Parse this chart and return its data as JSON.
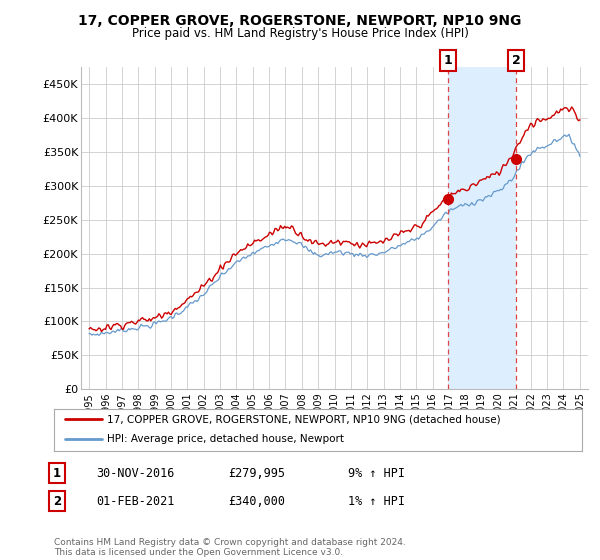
{
  "title": "17, COPPER GROVE, ROGERSTONE, NEWPORT, NP10 9NG",
  "subtitle": "Price paid vs. HM Land Registry's House Price Index (HPI)",
  "ylabel_ticks": [
    "£0",
    "£50K",
    "£100K",
    "£150K",
    "£200K",
    "£250K",
    "£300K",
    "£350K",
    "£400K",
    "£450K"
  ],
  "ytick_vals": [
    0,
    50000,
    100000,
    150000,
    200000,
    250000,
    300000,
    350000,
    400000,
    450000
  ],
  "ylim": [
    0,
    475000
  ],
  "xlim_start": 1994.5,
  "xlim_end": 2025.5,
  "sale1": {
    "date_num": 2016.92,
    "price": 279995,
    "label": "1"
  },
  "sale2": {
    "date_num": 2021.09,
    "price": 340000,
    "label": "2"
  },
  "red_line_color": "#cc0000",
  "blue_line_color": "#6699cc",
  "shade_color": "#ddeeff",
  "grid_color": "#cccccc",
  "background_color": "#ffffff",
  "legend_entry1": "17, COPPER GROVE, ROGERSTONE, NEWPORT, NP10 9NG (detached house)",
  "legend_entry2": "HPI: Average price, detached house, Newport",
  "sale1_date": "30-NOV-2016",
  "sale1_price": "£279,995",
  "sale1_hpi": "9% ↑ HPI",
  "sale2_date": "01-FEB-2021",
  "sale2_price": "£340,000",
  "sale2_hpi": "1% ↑ HPI",
  "footer": "Contains HM Land Registry data © Crown copyright and database right 2024.\nThis data is licensed under the Open Government Licence v3.0.",
  "years": [
    1995,
    1996,
    1997,
    1998,
    1999,
    2000,
    2001,
    2002,
    2003,
    2004,
    2005,
    2006,
    2007,
    2008,
    2009,
    2010,
    2011,
    2012,
    2013,
    2014,
    2015,
    2016,
    2017,
    2018,
    2019,
    2020,
    2021,
    2022,
    2023,
    2024,
    2025
  ],
  "hpi_vals": [
    80000,
    83000,
    87000,
    91000,
    96000,
    106000,
    121000,
    140000,
    165000,
    186000,
    200000,
    212000,
    222000,
    212000,
    198000,
    202000,
    200000,
    198000,
    202000,
    212000,
    222000,
    240000,
    262000,
    272000,
    280000,
    292000,
    316000,
    348000,
    360000,
    372000,
    345000
  ],
  "price_vals": [
    88000,
    91000,
    96000,
    100000,
    105000,
    116000,
    132000,
    152000,
    178000,
    200000,
    215000,
    228000,
    240000,
    228000,
    214000,
    218000,
    216000,
    213000,
    218000,
    228000,
    240000,
    260000,
    285000,
    295000,
    308000,
    320000,
    352000,
    390000,
    400000,
    412000,
    395000
  ]
}
